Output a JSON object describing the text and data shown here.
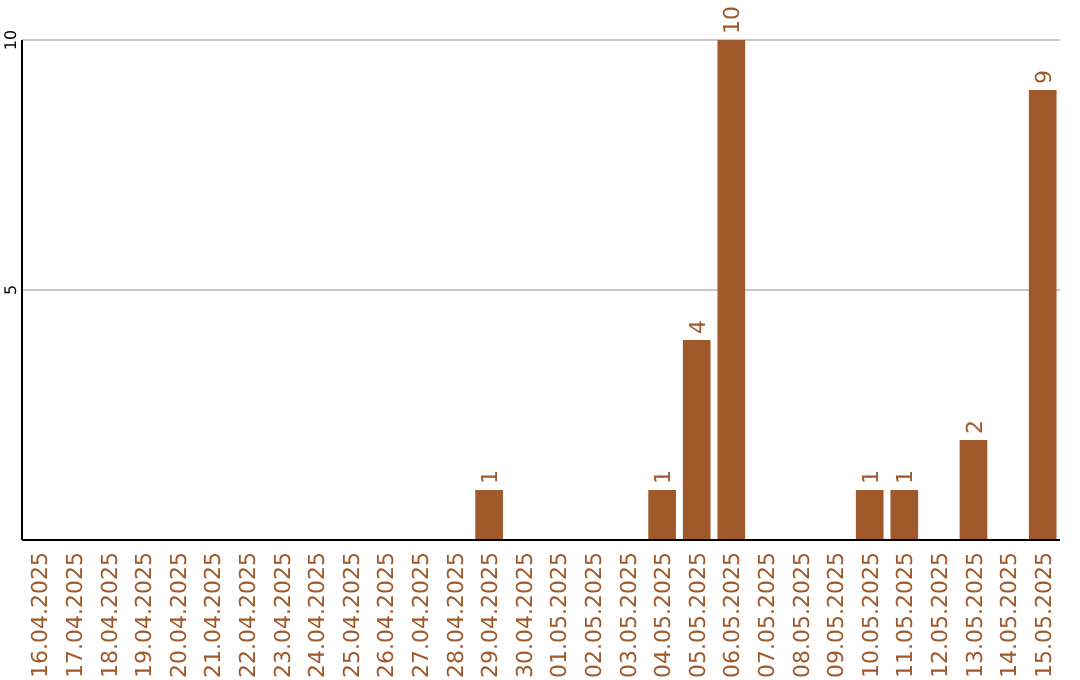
{
  "chart_data": {
    "type": "bar",
    "categories": [
      "16.04.2025",
      "17.04.2025",
      "18.04.2025",
      "19.04.2025",
      "20.04.2025",
      "21.04.2025",
      "22.04.2025",
      "23.04.2025",
      "24.04.2025",
      "25.04.2025",
      "26.04.2025",
      "27.04.2025",
      "28.04.2025",
      "29.04.2025",
      "30.04.2025",
      "01.05.2025",
      "02.05.2025",
      "03.05.2025",
      "04.05.2025",
      "05.05.2025",
      "06.05.2025",
      "07.05.2025",
      "08.05.2025",
      "09.05.2025",
      "10.05.2025",
      "11.05.2025",
      "12.05.2025",
      "13.05.2025",
      "14.05.2025",
      "15.05.2025"
    ],
    "values": [
      0,
      0,
      0,
      0,
      0,
      0,
      0,
      0,
      0,
      0,
      0,
      0,
      0,
      1,
      0,
      0,
      0,
      0,
      1,
      4,
      10,
      0,
      0,
      0,
      1,
      1,
      0,
      2,
      0,
      9
    ],
    "value_labels": [
      null,
      null,
      null,
      null,
      null,
      null,
      null,
      null,
      null,
      null,
      null,
      null,
      null,
      "1",
      null,
      null,
      null,
      null,
      "1",
      "4",
      "10",
      null,
      null,
      null,
      "1",
      "1",
      null,
      "2",
      null,
      "9"
    ],
    "color": "#a0592a",
    "ylim": [
      0,
      10
    ],
    "yticks": [
      5,
      10
    ],
    "grid": "y"
  }
}
